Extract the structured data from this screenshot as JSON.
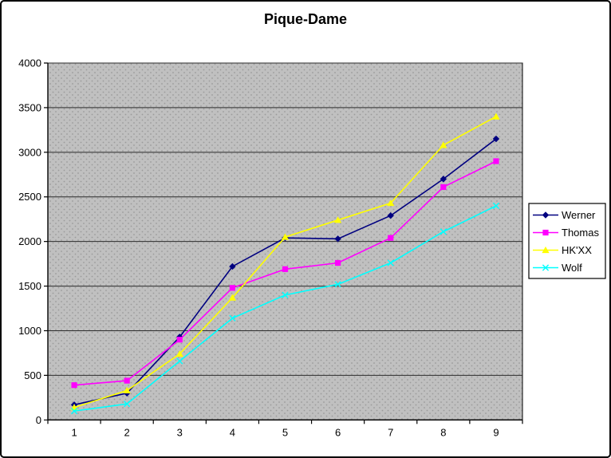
{
  "chart_data": {
    "type": "line",
    "title": "Pique-Dame",
    "categories": [
      "1",
      "2",
      "3",
      "4",
      "5",
      "6",
      "7",
      "8",
      "9"
    ],
    "series": [
      {
        "name": "Werner",
        "color": "#000080",
        "marker": "diamond",
        "values": [
          170,
          300,
          930,
          1720,
          2040,
          2030,
          2290,
          2700,
          3150
        ]
      },
      {
        "name": "Thomas",
        "color": "#ff00ff",
        "marker": "square",
        "values": [
          390,
          440,
          900,
          1480,
          1690,
          1760,
          2040,
          2610,
          2900
        ]
      },
      {
        "name": "HK'XX",
        "color": "#ffff00",
        "marker": "triangle",
        "values": [
          140,
          330,
          740,
          1370,
          2050,
          2240,
          2430,
          3080,
          3400
        ]
      },
      {
        "name": "Wolf",
        "color": "#00ffff",
        "marker": "x",
        "values": [
          100,
          180,
          660,
          1140,
          1400,
          1520,
          1760,
          2110,
          2400
        ]
      }
    ],
    "xlabel": "",
    "ylabel": "",
    "ylim": [
      0,
      4000
    ],
    "ytick_step": 500,
    "grid": true,
    "legend_position": "right",
    "colors": {
      "plot_bg": "#c0c0c0",
      "plot_dot": "#9b9b9b",
      "gridline": "#2b2b2b",
      "axis": "#000000",
      "text": "#000000",
      "legend_bg": "#ffffff",
      "legend_border": "#000000"
    }
  }
}
